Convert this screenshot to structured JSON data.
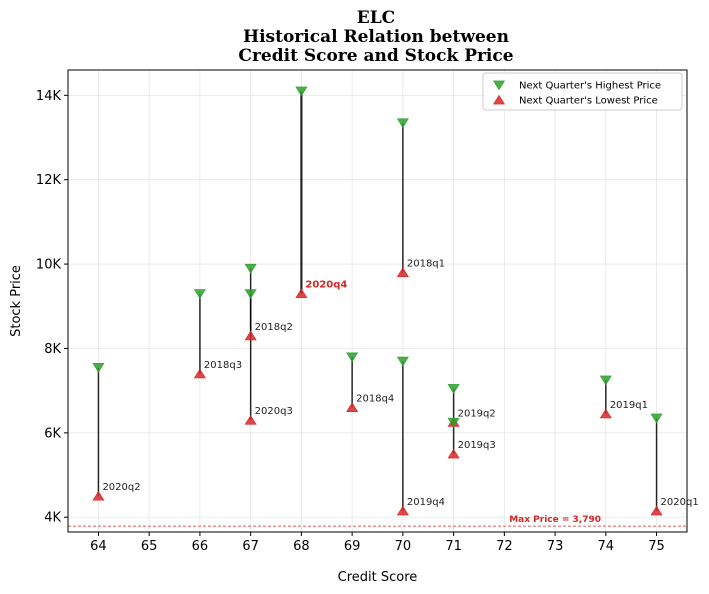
{
  "chart_data": {
    "type": "scatter",
    "title_lines": [
      "ELC",
      "Historical Relation between",
      "Credit Score and Stock Price"
    ],
    "xlabel": "Credit Score",
    "ylabel": "Stock Price",
    "xlim": [
      63.4,
      75.6
    ],
    "ylim": [
      3650,
      14600
    ],
    "x_ticks": [
      {
        "value": 64,
        "label": "64"
      },
      {
        "value": 65,
        "label": "65"
      },
      {
        "value": 66,
        "label": "66"
      },
      {
        "value": 67,
        "label": "67"
      },
      {
        "value": 68,
        "label": "68"
      },
      {
        "value": 69,
        "label": "69"
      },
      {
        "value": 70,
        "label": "70"
      },
      {
        "value": 71,
        "label": "71"
      },
      {
        "value": 72,
        "label": "72"
      },
      {
        "value": 73,
        "label": "73"
      },
      {
        "value": 74,
        "label": "74"
      },
      {
        "value": 75,
        "label": "75"
      }
    ],
    "y_ticks": [
      {
        "value": 4000,
        "label": "4K"
      },
      {
        "value": 6000,
        "label": "6K"
      },
      {
        "value": 8000,
        "label": "8K"
      },
      {
        "value": 10000,
        "label": "10K"
      },
      {
        "value": 12000,
        "label": "12K"
      },
      {
        "value": 14000,
        "label": "14K"
      }
    ],
    "grid": true,
    "legend": {
      "position": "top-right",
      "entries": [
        {
          "label": "Next Quarter's Highest Price",
          "marker": "triangle-down",
          "color": "#2ca02c"
        },
        {
          "label": "Next Quarter's Lowest Price",
          "marker": "triangle-up",
          "color": "#d62728"
        }
      ]
    },
    "points": [
      {
        "label": "2020q2",
        "x": 64,
        "high": 7550,
        "low": 4500,
        "highlight": false
      },
      {
        "label": "2018q3",
        "x": 66,
        "high": 9300,
        "low": 7400,
        "highlight": false
      },
      {
        "label": "2018q2",
        "x": 67,
        "high": 9900,
        "low": 8300,
        "highlight": false
      },
      {
        "label": "2020q3",
        "x": 67,
        "high": 9300,
        "low": 6300,
        "highlight": false
      },
      {
        "label": "2020q4",
        "x": 68,
        "high": 14100,
        "low": 9300,
        "highlight": true
      },
      {
        "label": "2018q4",
        "x": 69,
        "high": 7800,
        "low": 6600,
        "highlight": false
      },
      {
        "label": "2018q1",
        "x": 70,
        "high": 13350,
        "low": 9800,
        "highlight": false
      },
      {
        "label": "2019q4",
        "x": 70,
        "high": 7700,
        "low": 4150,
        "highlight": false
      },
      {
        "label": "2019q2",
        "x": 71,
        "high": 7050,
        "low": 6250,
        "highlight": false
      },
      {
        "label": "2019q3",
        "x": 71,
        "high": 6250,
        "low": 5500,
        "highlight": false
      },
      {
        "label": "2019q1",
        "x": 74,
        "high": 7250,
        "low": 6450,
        "highlight": false
      },
      {
        "label": "2020q1",
        "x": 75,
        "high": 6350,
        "low": 4150,
        "highlight": false
      }
    ],
    "reference_line": {
      "value": 3790,
      "label": "Max Price = 3,790",
      "color": "#d62728"
    },
    "colors": {
      "high": "#2ca02c",
      "low": "#d62728",
      "connector": "#000000",
      "highlight_label": "#d62728"
    }
  }
}
